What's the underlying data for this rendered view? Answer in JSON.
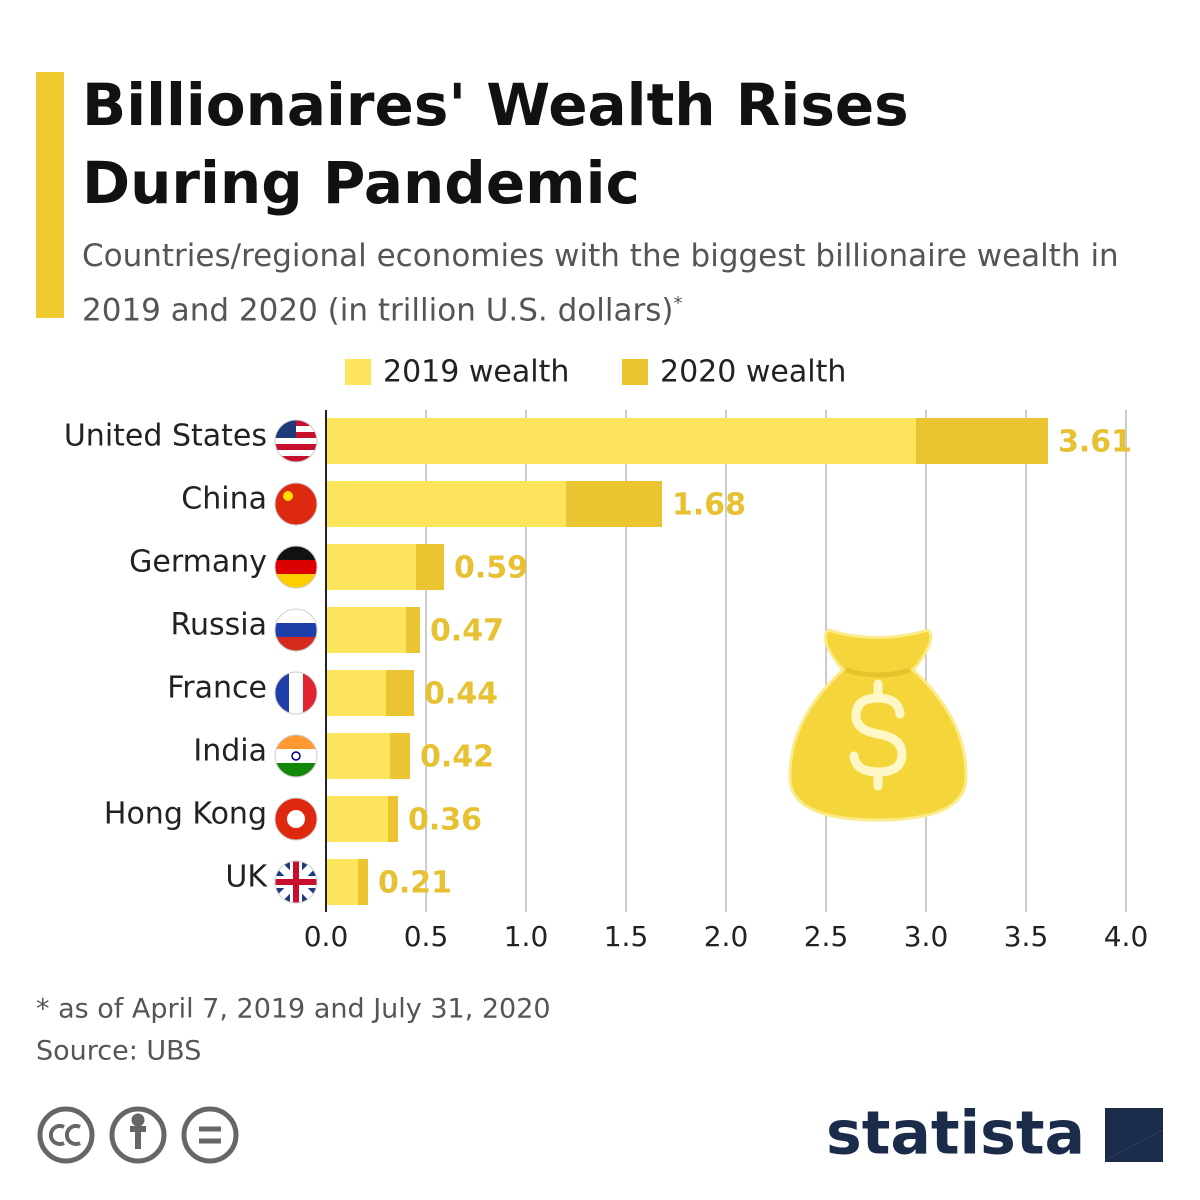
{
  "chart_data": {
    "type": "overlapping-bar",
    "title": "Billionaires' Wealth Rises During Pandemic",
    "subtitle": "Countries/regional economies with the biggest billionaire wealth in 2019 and 2020 (in trillion U.S. dollars)",
    "subtitle_mark": "*",
    "categories": [
      "United States",
      "China",
      "Germany",
      "Russia",
      "France",
      "India",
      "Hong Kong",
      "UK"
    ],
    "series": [
      {
        "name": "2019 wealth",
        "color": "#fce55c",
        "values": [
          2.95,
          1.2,
          0.45,
          0.4,
          0.3,
          0.32,
          0.31,
          0.16
        ]
      },
      {
        "name": "2020 wealth",
        "color": "#ebc531",
        "values": [
          3.61,
          1.68,
          0.59,
          0.47,
          0.44,
          0.42,
          0.36,
          0.21
        ]
      }
    ],
    "labeled_series": 1,
    "label_color": "#e8c132",
    "xlim": [
      0,
      4
    ],
    "xticks": [
      {
        "value": 0,
        "label": "0.0"
      },
      0.5,
      {
        "value": 1,
        "label": "1.0"
      },
      1.5,
      {
        "value": 2,
        "label": "2.0"
      },
      2.5,
      {
        "value": 3,
        "label": "3.0"
      },
      3.5,
      {
        "value": 4,
        "label": "4.0"
      }
    ],
    "grid": true,
    "footnote": "* as of April 7, 2019 and July 31, 2020",
    "source": "Source: UBS",
    "brand": "statista"
  }
}
